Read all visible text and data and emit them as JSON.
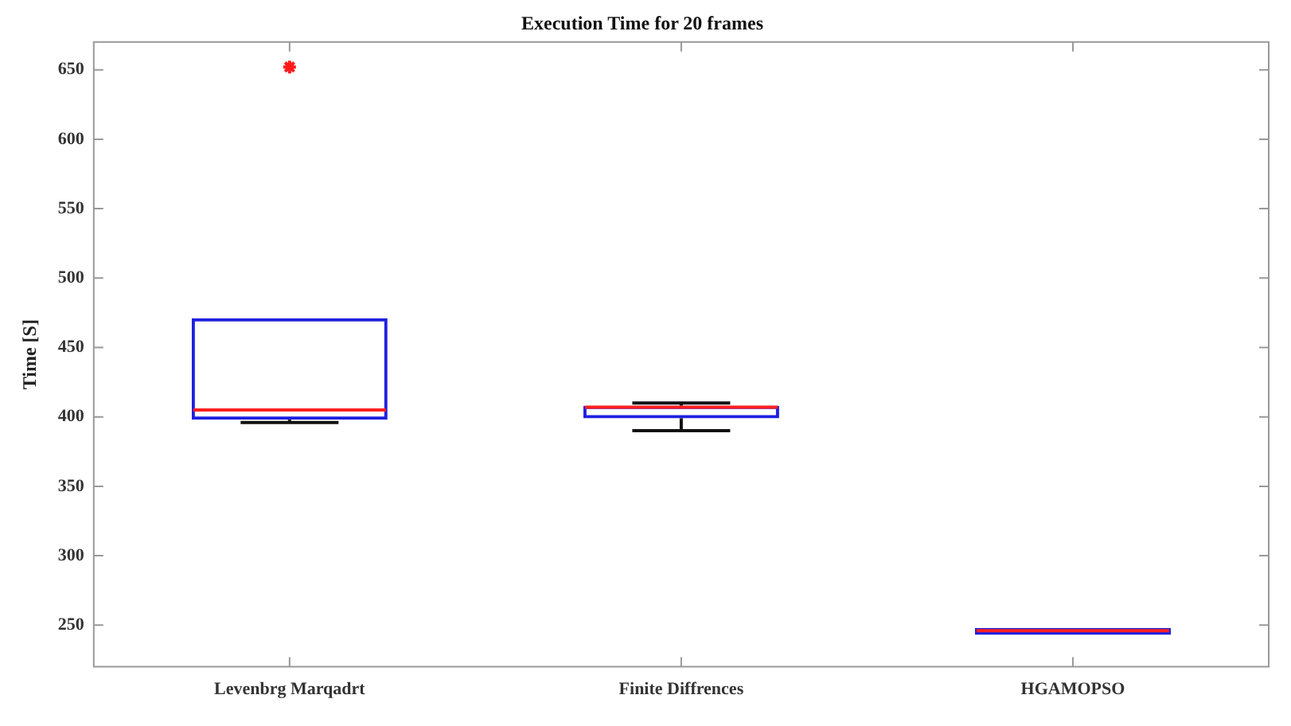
{
  "chart_data": {
    "type": "box",
    "title": "Execution Time for 20 frames",
    "ylabel": "Time [S]",
    "categories": [
      "Levenbrg Marqadrt",
      "Finite Diffrences",
      "HGAMOPSO"
    ],
    "boxes": [
      {
        "low": 396,
        "q1": 398,
        "median": 405,
        "q3": 471,
        "high": 471,
        "outliers": [
          652
        ]
      },
      {
        "low": 390,
        "q1": 399,
        "median": 407,
        "q3": 408,
        "high": 410
      },
      {
        "low": 243,
        "q1": 243,
        "median": 246,
        "q3": 248,
        "high": 248
      }
    ],
    "ylim": [
      220,
      670
    ],
    "yticks": [
      250,
      300,
      350,
      400,
      450,
      500,
      550,
      600,
      650
    ],
    "grid": false,
    "legend": false
  }
}
